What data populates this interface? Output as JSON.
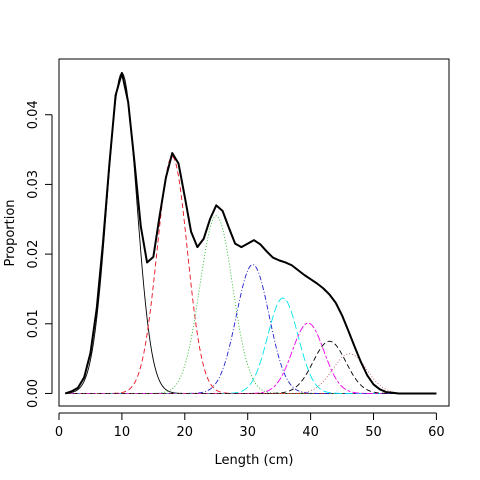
{
  "chart_data": {
    "type": "line",
    "title": "",
    "xlabel": "Length (cm)",
    "ylabel": "Proportion",
    "xlim": [
      0,
      62
    ],
    "ylim": [
      -0.0018,
      0.048
    ],
    "x_ticks": [
      0,
      10,
      20,
      30,
      40,
      50,
      60
    ],
    "y_ticks": [
      0.0,
      0.01,
      0.02,
      0.03,
      0.04
    ],
    "y_tick_labels": [
      "0.00",
      "0.01",
      "0.02",
      "0.03",
      "0.04"
    ],
    "grid": false,
    "legend": "none",
    "total": {
      "name": "",
      "color": "#000000",
      "style": "solid",
      "x": [
        1,
        2,
        3,
        4,
        5,
        6,
        7,
        8,
        9,
        10,
        11,
        12,
        13,
        14,
        15,
        16,
        17,
        18,
        19,
        20,
        21,
        22,
        23,
        24,
        25,
        26,
        27,
        28,
        29,
        30,
        31,
        32,
        33,
        34,
        35,
        36,
        37,
        38,
        39,
        40,
        41,
        42,
        43,
        44,
        45,
        46,
        47,
        48,
        49,
        50,
        51,
        52,
        53,
        54,
        55,
        56,
        57,
        58,
        59,
        60
      ],
      "y": [
        0.0,
        0.0003,
        0.0008,
        0.0023,
        0.0058,
        0.0122,
        0.0217,
        0.0328,
        0.0428,
        0.046,
        0.0418,
        0.0332,
        0.024,
        0.0188,
        0.0196,
        0.0255,
        0.031,
        0.0345,
        0.033,
        0.0282,
        0.0232,
        0.021,
        0.0222,
        0.025,
        0.027,
        0.0262,
        0.0238,
        0.0215,
        0.021,
        0.0215,
        0.022,
        0.0214,
        0.0204,
        0.0195,
        0.0191,
        0.0188,
        0.0184,
        0.0177,
        0.017,
        0.0164,
        0.0158,
        0.0151,
        0.0142,
        0.013,
        0.0112,
        0.009,
        0.0067,
        0.0045,
        0.0026,
        0.0013,
        0.0006,
        0.0002,
        0.0001,
        0.0,
        0.0,
        0.0,
        0.0,
        0.0,
        0.0,
        0.0
      ]
    },
    "components": [
      {
        "name": "",
        "color": "#000000",
        "style": "solid-thin",
        "mean": 10.0,
        "sd": 2.35,
        "peak": 0.046
      },
      {
        "name": "",
        "color": "#e8101c",
        "style": "dashed",
        "mean": 18.0,
        "sd": 2.4,
        "peak": 0.034
      },
      {
        "name": "",
        "color": "#22bb22",
        "style": "dotted",
        "mean": 25.0,
        "sd": 2.6,
        "peak": 0.0255
      },
      {
        "name": "",
        "color": "#2222cc",
        "style": "dotdash",
        "mean": 30.8,
        "sd": 2.6,
        "peak": 0.0185
      },
      {
        "name": "",
        "color": "#00e5ee",
        "style": "longdash",
        "mean": 35.6,
        "sd": 2.4,
        "peak": 0.0137
      },
      {
        "name": "",
        "color": "#ee00ee",
        "style": "twodash",
        "mean": 39.6,
        "sd": 2.5,
        "peak": 0.0101
      },
      {
        "name": "",
        "color": "#000000",
        "style": "dashed",
        "mean": 43.0,
        "sd": 2.6,
        "peak": 0.0075
      },
      {
        "name": "",
        "color": "#c06060",
        "style": "dotted",
        "mean": 46.2,
        "sd": 2.7,
        "peak": 0.0057
      }
    ]
  }
}
